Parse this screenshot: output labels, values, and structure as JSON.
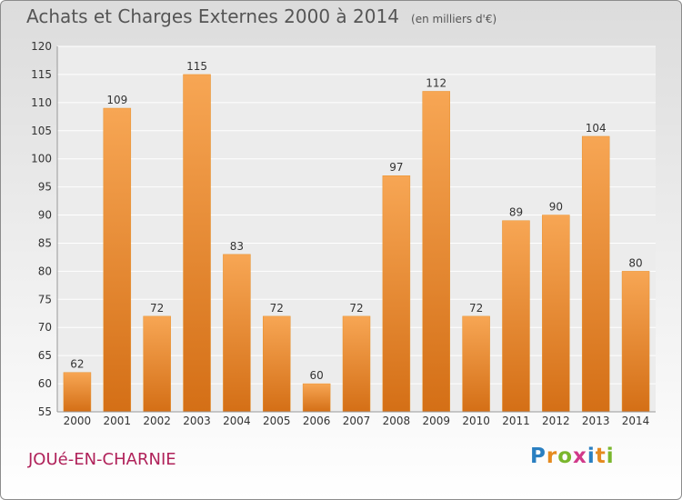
{
  "header": {
    "title": "Achats et Charges Externes 2000 à 2014",
    "unit": "(en milliers d'€)"
  },
  "footer": {
    "commune": "JOUé-EN-CHARNIE",
    "logo": "Proxiti"
  },
  "colors": {
    "bar_light": "#f7a654",
    "bar_dark": "#d46f16",
    "commune_text": "#b0225a",
    "logo_letters": [
      "#2a7fc1",
      "#e58a1f",
      "#7ab62c",
      "#d13a8a",
      "#2a7fc1",
      "#e58a1f",
      "#7ab62c"
    ]
  },
  "chart_data": {
    "type": "bar",
    "categories": [
      "2000",
      "2001",
      "2002",
      "2003",
      "2004",
      "2005",
      "2006",
      "2007",
      "2008",
      "2009",
      "2010",
      "2011",
      "2012",
      "2013",
      "2014"
    ],
    "values": [
      62,
      109,
      72,
      115,
      83,
      72,
      60,
      72,
      97,
      112,
      72,
      89,
      90,
      104,
      80
    ],
    "title": "Achats et Charges Externes 2000 à 2014",
    "ylabel": "",
    "xlabel": "",
    "ylim": [
      55,
      120
    ],
    "yticks": [
      55,
      60,
      65,
      70,
      75,
      80,
      85,
      90,
      95,
      100,
      105,
      110,
      115,
      120
    ],
    "grid": true,
    "data_labels": true
  }
}
